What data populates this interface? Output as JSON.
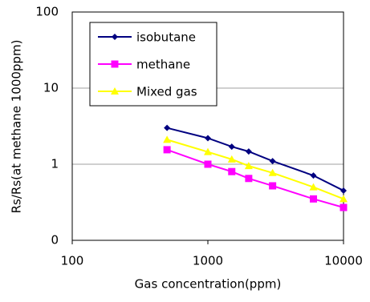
{
  "chart_data": {
    "type": "line",
    "x_label": "Gas concentration(ppm)",
    "y_label": "Rs/Rs(at methane 1000ppm)",
    "x": [
      500,
      1000,
      1500,
      2000,
      3000,
      6000,
      10000
    ],
    "series": [
      {
        "name": "isobutane",
        "color": "#000080",
        "marker": "diamond",
        "values": [
          3.0,
          2.2,
          1.7,
          1.47,
          1.1,
          0.71,
          0.45
        ]
      },
      {
        "name": "methane",
        "color": "#ff00ff",
        "marker": "square",
        "values": [
          1.55,
          1.0,
          0.8,
          0.65,
          0.52,
          0.35,
          0.27
        ]
      },
      {
        "name": "Mixed gas",
        "color": "#ffff00",
        "marker": "triangle",
        "values": [
          2.1,
          1.45,
          1.16,
          0.95,
          0.77,
          0.5,
          0.35
        ]
      }
    ],
    "xlim": [
      100,
      10000
    ],
    "xticks": [
      100,
      1000,
      10000
    ],
    "ylim": [
      0.1,
      100
    ],
    "yticks": [
      {
        "value": 0.1,
        "label": "0"
      },
      1,
      10,
      100
    ],
    "xscale": "log",
    "yscale": "log",
    "grid": true,
    "legend": "upper left"
  }
}
